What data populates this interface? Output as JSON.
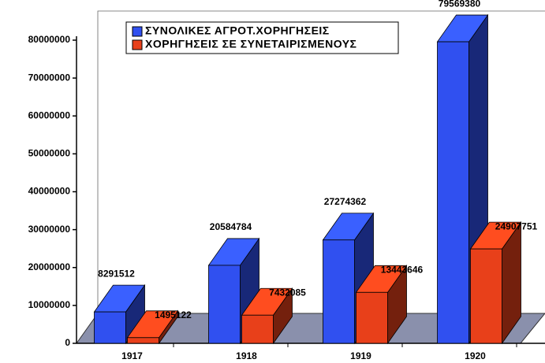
{
  "chart_data": {
    "type": "bar3d",
    "categories": [
      "1917",
      "1918",
      "1919",
      "1920"
    ],
    "series": [
      {
        "name": "ΣΥΝΟΛΙΚΕΣ ΑΓΡΟΤ.ΧΟΡΗΓΗΣΕΙΣ",
        "color": "#3050f0",
        "values": [
          8291512,
          20584784,
          27274362,
          79569380
        ]
      },
      {
        "name": "ΧΟΡΗΓΗΣΕΙΣ ΣΕ ΣΥΝΕΤΑΙΡΙΣΜΕΝΟΥΣ",
        "color": "#e8401a",
        "values": [
          1495122,
          7432085,
          13443646,
          24907751
        ]
      }
    ],
    "ylim": [
      0,
      80000000
    ],
    "yticks": [
      0,
      10000000,
      20000000,
      30000000,
      40000000,
      50000000,
      60000000,
      70000000,
      80000000
    ],
    "legend": "top"
  }
}
